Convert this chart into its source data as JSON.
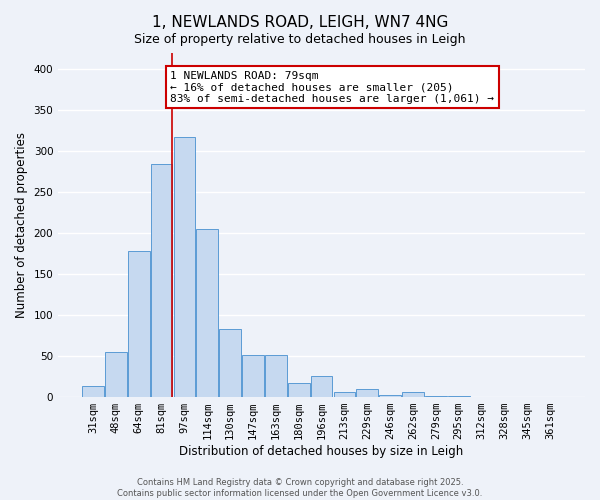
{
  "title": "1, NEWLANDS ROAD, LEIGH, WN7 4NG",
  "subtitle": "Size of property relative to detached houses in Leigh",
  "xlabel": "Distribution of detached houses by size in Leigh",
  "ylabel": "Number of detached properties",
  "bar_labels": [
    "31sqm",
    "48sqm",
    "64sqm",
    "81sqm",
    "97sqm",
    "114sqm",
    "130sqm",
    "147sqm",
    "163sqm",
    "180sqm",
    "196sqm",
    "213sqm",
    "229sqm",
    "246sqm",
    "262sqm",
    "279sqm",
    "295sqm",
    "312sqm",
    "328sqm",
    "345sqm",
    "361sqm"
  ],
  "bar_heights": [
    13,
    54,
    178,
    284,
    317,
    204,
    83,
    51,
    51,
    16,
    25,
    5,
    9,
    2,
    5,
    1,
    1,
    0,
    0,
    0,
    0
  ],
  "bar_color": "#c6d9f0",
  "bar_edge_color": "#5b9bd5",
  "vline_index": 3,
  "vline_color": "#cc0000",
  "annotation_line1": "1 NEWLANDS ROAD: 79sqm",
  "annotation_line2": "← 16% of detached houses are smaller (205)",
  "annotation_line3": "83% of semi-detached houses are larger (1,061) →",
  "ylim": [
    0,
    420
  ],
  "yticks": [
    0,
    50,
    100,
    150,
    200,
    250,
    300,
    350,
    400
  ],
  "bg_color": "#eef2f9",
  "plot_bg_color": "#eef2f9",
  "grid_color": "#ffffff",
  "footer_line1": "Contains HM Land Registry data © Crown copyright and database right 2025.",
  "footer_line2": "Contains public sector information licensed under the Open Government Licence v3.0.",
  "title_fontsize": 11,
  "subtitle_fontsize": 9,
  "axis_label_fontsize": 8.5,
  "tick_fontsize": 7.5,
  "annotation_fontsize": 8,
  "footer_fontsize": 6
}
